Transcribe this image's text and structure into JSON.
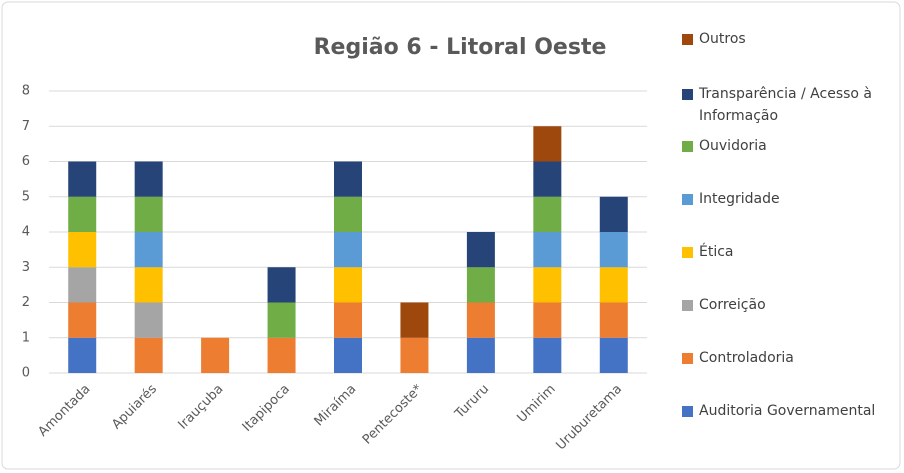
{
  "chart_data": {
    "type": "bar",
    "stacked": true,
    "title": "Região 6 - Litoral Oeste",
    "categories": [
      "Amontada",
      "Apuiarés",
      "Irauçuba",
      "Itapipoca",
      "Miraíma",
      "Pentecoste*",
      "Tururu",
      "Umirim",
      "Uruburetama"
    ],
    "series": [
      {
        "name": "Auditoria Governamental",
        "color": "#4472c4",
        "values": [
          1,
          0,
          0,
          0,
          1,
          0,
          1,
          1,
          1
        ]
      },
      {
        "name": "Controladoria",
        "color": "#ed7d31",
        "values": [
          1,
          1,
          1,
          1,
          1,
          1,
          1,
          1,
          1
        ]
      },
      {
        "name": "Correição",
        "color": "#a5a5a5",
        "values": [
          1,
          1,
          0,
          0,
          0,
          0,
          0,
          0,
          0
        ]
      },
      {
        "name": "Ética",
        "color": "#ffc000",
        "values": [
          1,
          1,
          0,
          0,
          1,
          0,
          0,
          1,
          1
        ]
      },
      {
        "name": "Integridade",
        "color": "#5b9bd5",
        "values": [
          0,
          1,
          0,
          0,
          1,
          0,
          0,
          1,
          1
        ]
      },
      {
        "name": "Ouvidoria",
        "color": "#70ad47",
        "values": [
          1,
          1,
          0,
          1,
          1,
          0,
          1,
          1,
          0
        ]
      },
      {
        "name": "Transparência / Acesso à Informação",
        "color": "#264478",
        "values": [
          1,
          1,
          0,
          1,
          1,
          0,
          1,
          1,
          1
        ]
      },
      {
        "name": "Outros",
        "color": "#9e480e",
        "values": [
          0,
          0,
          0,
          0,
          0,
          1,
          0,
          1,
          0
        ]
      }
    ],
    "ylim": [
      0,
      8
    ],
    "yticks": [
      0,
      1,
      2,
      3,
      4,
      5,
      6,
      7,
      8
    ],
    "grid": true,
    "legend": "right"
  }
}
